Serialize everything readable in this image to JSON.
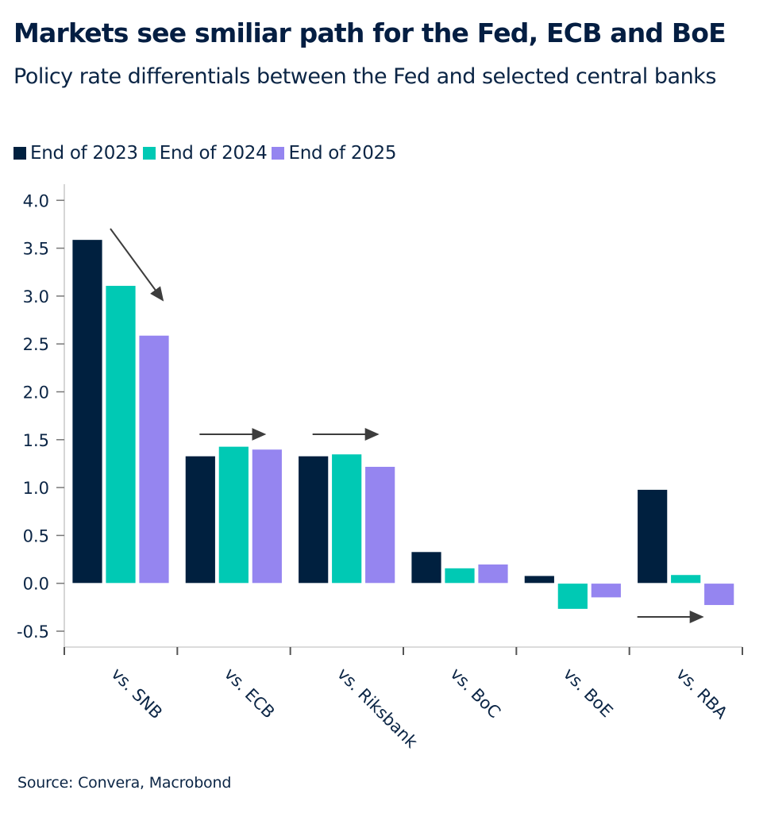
{
  "chart_data": {
    "type": "bar",
    "title": "Markets see smiliar path for the Fed, ECB and BoE",
    "subtitle": "Policy rate differentials between the Fed and selected central banks",
    "xlabel": "",
    "ylabel": "",
    "categories": [
      "vs. SNB",
      "vs. ECB",
      "vs. Riksbank",
      "vs. BoC",
      "vs. BoE",
      "vs. RBA"
    ],
    "series": [
      {
        "name": "End of 2023",
        "color": "#00203f",
        "values": [
          3.59,
          1.33,
          1.33,
          0.33,
          0.08,
          0.98
        ]
      },
      {
        "name": "End of 2024",
        "color": "#00c9b4",
        "values": [
          3.11,
          1.43,
          1.35,
          0.16,
          -0.27,
          0.09
        ]
      },
      {
        "name": "End of 2025",
        "color": "#9585f0",
        "values": [
          2.59,
          1.4,
          1.22,
          0.2,
          -0.15,
          -0.23
        ]
      }
    ],
    "ylim": [
      -0.65,
      4.15
    ],
    "yticks": [
      -0.5,
      0.0,
      0.5,
      1.0,
      1.5,
      2.0,
      2.5,
      3.0,
      3.5,
      4.0
    ],
    "ytick_labels": [
      "-0.5",
      "0.0",
      "0.5",
      "1.0",
      "1.5",
      "2.0",
      "2.5",
      "3.0",
      "3.5",
      "4.0"
    ],
    "grid": false,
    "legend_position": "top-left",
    "annotations": [
      {
        "type": "arrow",
        "direction": "down-right",
        "category": "vs. SNB"
      },
      {
        "type": "arrow",
        "direction": "right",
        "category": "vs. ECB"
      },
      {
        "type": "arrow",
        "direction": "right",
        "category": "vs. Riksbank"
      },
      {
        "type": "arrow",
        "direction": "right",
        "category": "vs. RBA"
      }
    ],
    "source": "Source: Convera, Macrobond"
  }
}
